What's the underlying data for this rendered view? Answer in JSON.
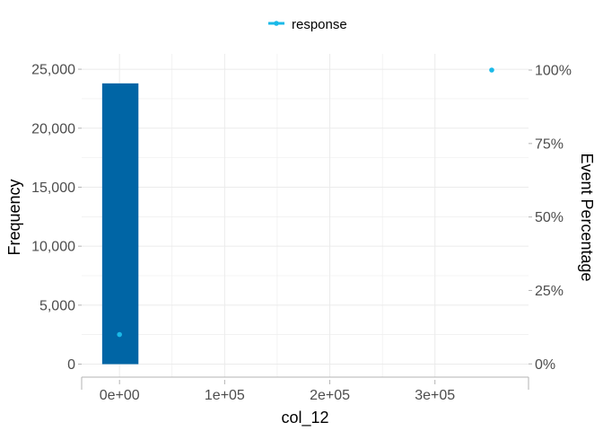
{
  "chart_data": {
    "type": "bar",
    "x_axis": {
      "label": "col_12",
      "ticks": [
        {
          "value": 0,
          "label": "0e+00"
        },
        {
          "value": 100000,
          "label": "1e+05"
        },
        {
          "value": 200000,
          "label": "2e+05"
        },
        {
          "value": 300000,
          "label": "3e+05"
        }
      ]
    },
    "y_axis_left": {
      "label": "Frequency",
      "ticks": [
        {
          "value": 0,
          "label": "0"
        },
        {
          "value": 5000,
          "label": "5,000"
        },
        {
          "value": 10000,
          "label": "10,000"
        },
        {
          "value": 15000,
          "label": "15,000"
        },
        {
          "value": 20000,
          "label": "20,000"
        },
        {
          "value": 25000,
          "label": "25,000"
        }
      ]
    },
    "y_axis_right": {
      "label": "Event Percentage",
      "ticks": [
        {
          "value": 0,
          "label": "0%"
        },
        {
          "value": 25,
          "label": "25%"
        },
        {
          "value": 50,
          "label": "50%"
        },
        {
          "value": 75,
          "label": "75%"
        },
        {
          "value": 100,
          "label": "100%"
        }
      ]
    },
    "bars": [
      {
        "x_start": -16500,
        "x_end": 18000,
        "frequency": 23800
      }
    ],
    "series": [
      {
        "name": "response",
        "axis": "right",
        "points": [
          {
            "x": 0,
            "y": 10
          },
          {
            "x": 354000,
            "y": 100
          }
        ]
      }
    ],
    "legend": {
      "position": "top",
      "entries": [
        "response"
      ]
    },
    "grid": true,
    "colors": {
      "bar": "#0065a5",
      "response": "#1ab9e8",
      "grid": "#ebebeb",
      "axis": "#b3b3b3"
    }
  }
}
